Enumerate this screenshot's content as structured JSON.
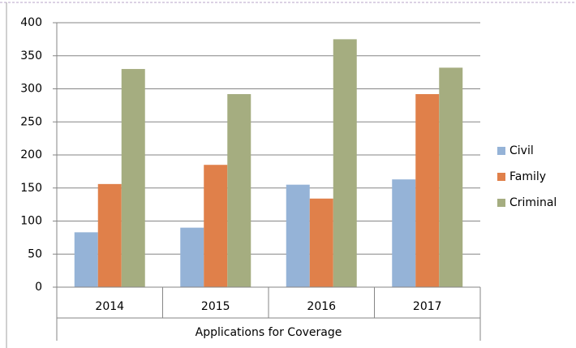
{
  "chart_data": {
    "type": "bar",
    "x_label": "Applications for Coverage",
    "categories": [
      "2014",
      "2015",
      "2016",
      "2017"
    ],
    "series": [
      {
        "name": "Civil",
        "color": "#95b3d7",
        "values": [
          83,
          90,
          155,
          163
        ]
      },
      {
        "name": "Family",
        "color": "#e0804a",
        "values": [
          156,
          185,
          134,
          292
        ]
      },
      {
        "name": "Criminal",
        "color": "#a5ad80",
        "values": [
          330,
          292,
          375,
          332
        ]
      }
    ],
    "ylim": [
      0,
      400
    ],
    "yticks": [
      0,
      50,
      100,
      150,
      200,
      250,
      300,
      350,
      400
    ],
    "grid": true,
    "legend": "right"
  }
}
